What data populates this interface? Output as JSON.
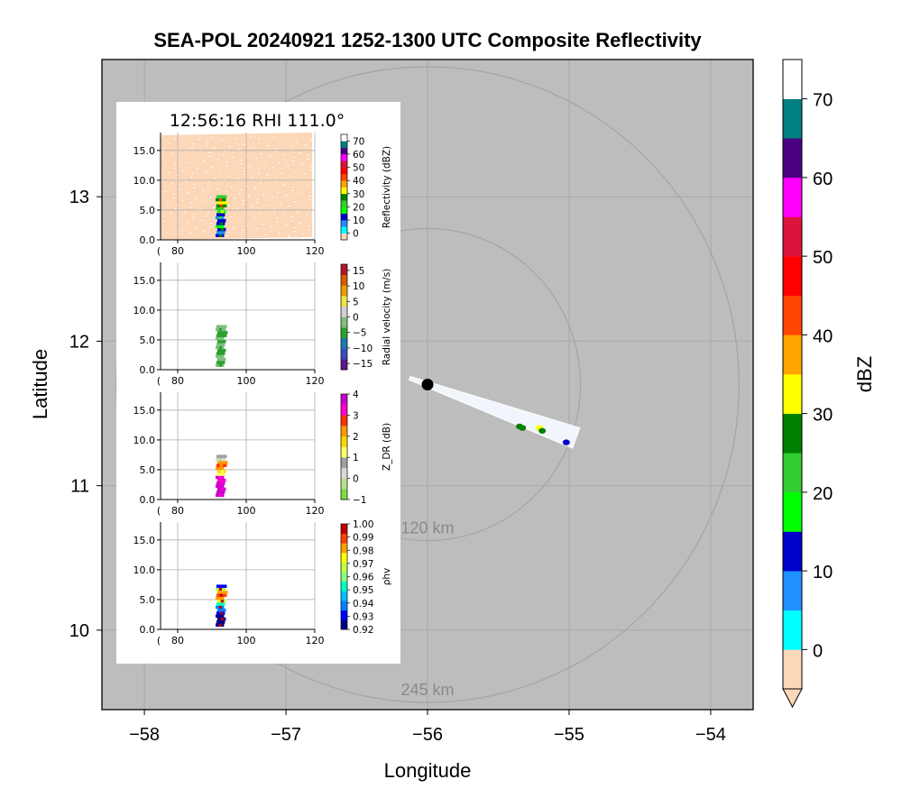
{
  "chart_data": {
    "type": "scatter",
    "title": "SEA-POL 20240921 1252-1300 UTC Composite Reflectivity",
    "xlabel": "Longitude",
    "ylabel": "Latitude",
    "xlim": [
      -58.3,
      -53.7
    ],
    "ylim": [
      9.45,
      13.95
    ],
    "xticks": [
      -58,
      -57,
      -56,
      -55,
      -54
    ],
    "yticks": [
      10,
      11,
      12,
      13
    ],
    "xtick_labels": [
      "−58",
      "−57",
      "−56",
      "−55",
      "−54"
    ],
    "yticks_labels": [
      "10",
      "11",
      "12",
      "13"
    ],
    "grid": true,
    "background_color": "#bdbdbd",
    "radar_site": {
      "lon": -56.0,
      "lat": 11.7
    },
    "range_rings": [
      {
        "label": "120 km",
        "radius_deg": 1.08
      },
      {
        "label": "245 km",
        "radius_deg": 2.2
      }
    ],
    "rhi_sector": {
      "azimuth_deg": 111.0,
      "beam_end_lon": -54.95,
      "beam_end_lat": 11.33,
      "echoes": [
        {
          "lon": -55.35,
          "lat": 11.41,
          "dbz": 25
        },
        {
          "lon": -55.33,
          "lat": 11.4,
          "dbz": 28
        },
        {
          "lon": -55.21,
          "lat": 11.4,
          "dbz": 30
        },
        {
          "lon": -55.19,
          "lat": 11.38,
          "dbz": 27
        },
        {
          "lon": -55.02,
          "lat": 11.3,
          "dbz": 12
        }
      ]
    },
    "colorbar": {
      "label": "dBZ",
      "ticks": [
        0,
        10,
        20,
        30,
        40,
        50,
        60,
        70
      ],
      "levels": [
        -5,
        0,
        5,
        10,
        15,
        20,
        25,
        30,
        35,
        40,
        45,
        50,
        55,
        60,
        65,
        70,
        75
      ],
      "colors": [
        "#fcd7b8",
        "#00ffff",
        "#1e90ff",
        "#0000cd",
        "#00ff00",
        "#32cd32",
        "#008000",
        "#ffff00",
        "#ffa500",
        "#ff4500",
        "#ff0000",
        "#dc143c",
        "#ff00ff",
        "#4b0082",
        "#008080",
        "#ffffff"
      ]
    },
    "inset": {
      "title": "12:56:16 RHI 111.0°",
      "xlim": [
        75,
        120
      ],
      "ylim": [
        0,
        18
      ],
      "xticks": [
        80,
        100,
        120
      ],
      "yticks": [
        0.0,
        5.0,
        10.0,
        15.0
      ],
      "xtick_labels": [
        "80",
        "100",
        "120"
      ],
      "ytick_labels": [
        "0.0",
        "5.0",
        "10.0",
        "15.0"
      ],
      "panels": [
        {
          "label": "Reflectivity (dBZ)",
          "ticks": [
            "0",
            "10",
            "20",
            "30",
            "40",
            "50",
            "60",
            "70"
          ],
          "tick_values": [
            0,
            10,
            20,
            30,
            40,
            50,
            60,
            70
          ],
          "vmin": -5,
          "vmax": 75,
          "colors": [
            "#fcd7b8",
            "#00ffff",
            "#1e90ff",
            "#0000cd",
            "#00ff00",
            "#32cd32",
            "#008000",
            "#ffff00",
            "#ffa500",
            "#ff4500",
            "#ff0000",
            "#dc143c",
            "#ff00ff",
            "#4b0082",
            "#008080",
            "#ffffff"
          ]
        },
        {
          "label": "Radial velocity (m/s)",
          "ticks": [
            "−15",
            "−10",
            "−5",
            "0",
            "5",
            "10",
            "15"
          ],
          "tick_values": [
            -15,
            -10,
            -5,
            0,
            5,
            10,
            15
          ],
          "vmin": -17,
          "vmax": 17,
          "colors": [
            "#5a1a8a",
            "#3b4cc0",
            "#1f77b4",
            "#2ca02c",
            "#7fbf7f",
            "#d0d0d0",
            "#f0e442",
            "#e69f00",
            "#d55e00",
            "#b2182b"
          ]
        },
        {
          "label": "Z_DR (dB)",
          "ticks": [
            "−1",
            "0",
            "1",
            "2",
            "3",
            "4"
          ],
          "tick_values": [
            -1,
            0,
            1,
            2,
            3,
            4
          ],
          "vmin": -1,
          "vmax": 4,
          "colors": [
            "#7ddc3c",
            "#b5e08a",
            "#d9d9d9",
            "#a0a0a0",
            "#ffff66",
            "#ffd700",
            "#ff9900",
            "#ff3300",
            "#ff00cc",
            "#cc00cc"
          ]
        },
        {
          "label": "ρhv",
          "ticks": [
            "0.92",
            "0.93",
            "0.94",
            "0.95",
            "0.96",
            "0.97",
            "0.98",
            "0.99",
            "1.00"
          ],
          "tick_values": [
            0.92,
            0.93,
            0.94,
            0.95,
            0.96,
            0.97,
            0.98,
            0.99,
            1.0
          ],
          "vmin": 0.92,
          "vmax": 1.0,
          "colors": [
            "#00008b",
            "#0000ff",
            "#0080ff",
            "#00c0ff",
            "#00ffc0",
            "#80ff80",
            "#c0ff40",
            "#ffff00",
            "#ffa000",
            "#ff4000",
            "#c00000"
          ]
        }
      ]
    }
  }
}
